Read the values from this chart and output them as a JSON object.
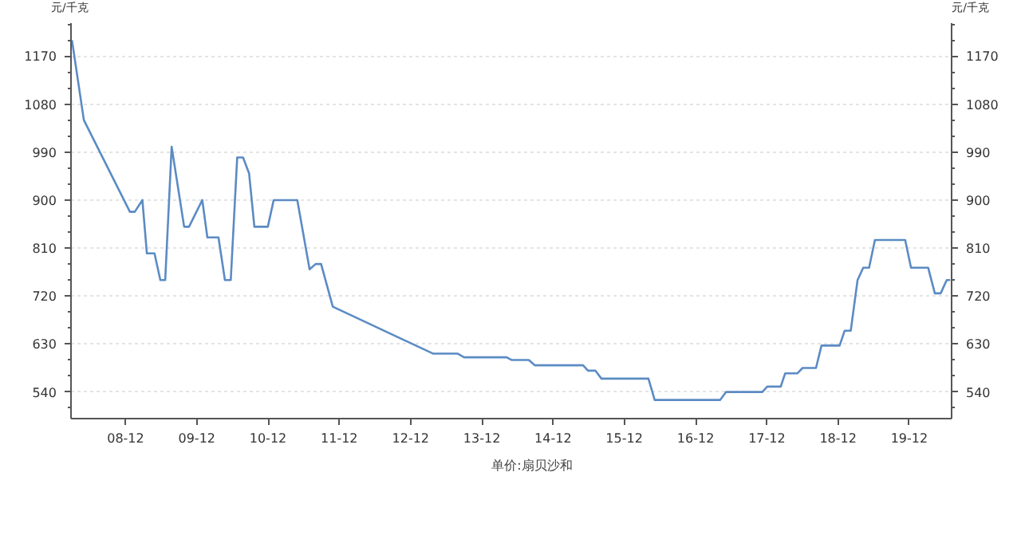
{
  "chart_data": {
    "type": "line",
    "ylabel": "元/千克",
    "y2label": "元/千克",
    "x": [
      "2008-03-01",
      "2008-05-01",
      "2008-12-23",
      "2009-01-17",
      "2009-02-25",
      "2009-03-20",
      "2009-04-28",
      "2009-05-28",
      "2009-06-22",
      "2009-07-25",
      "2009-09-27",
      "2009-10-22",
      "2009-12-29",
      "2010-01-24",
      "2010-03-22",
      "2010-04-24",
      "2010-05-24",
      "2010-06-26",
      "2010-07-26",
      "2010-08-26",
      "2010-09-22",
      "2010-11-30",
      "2010-12-30",
      "2011-04-30",
      "2011-07-02",
      "2011-08-02",
      "2011-08-30",
      "2011-10-29",
      "2013-03-25",
      "2013-07-29",
      "2013-09-01",
      "2014-04-07",
      "2014-05-02",
      "2014-07-30",
      "2014-08-30",
      "2015-05-04",
      "2015-05-29",
      "2015-07-06",
      "2015-08-06",
      "2016-04-03",
      "2016-05-05",
      "2017-04-06",
      "2017-05-06",
      "2017-11-08",
      "2017-12-03",
      "2018-02-10",
      "2018-03-05",
      "2018-05-07",
      "2018-06-02",
      "2018-08-10",
      "2018-09-07",
      "2018-12-09",
      "2019-01-04",
      "2019-02-04",
      "2019-03-11",
      "2019-04-09",
      "2019-05-09",
      "2019-06-08",
      "2019-11-10",
      "2019-12-10",
      "2020-03-07",
      "2020-04-10",
      "2020-05-10",
      "2020-06-10",
      "2020-06-28"
    ],
    "series": [
      {
        "name": "单价:扇贝沙和",
        "color": "#5b8bc4",
        "values": [
          1200,
          1050,
          878,
          878,
          900,
          800,
          800,
          750,
          750,
          1000,
          850,
          850,
          900,
          830,
          830,
          750,
          750,
          980,
          980,
          950,
          850,
          850,
          900,
          900,
          770,
          780,
          780,
          700,
          612,
          612,
          605,
          605,
          600,
          600,
          590,
          590,
          580,
          580,
          565,
          565,
          525,
          525,
          540,
          540,
          550,
          550,
          575,
          575,
          585,
          585,
          627,
          627,
          655,
          655,
          750,
          773,
          773,
          825,
          825,
          773,
          773,
          725,
          725,
          750,
          750
        ]
      }
    ],
    "xlim": [
      "2008-02-25",
      "2020-07-05"
    ],
    "xticks": [
      {
        "value": "2008-12-01",
        "label": "08-12"
      },
      {
        "value": "2009-12-01",
        "label": "09-12"
      },
      {
        "value": "2010-12-01",
        "label": "10-12"
      },
      {
        "value": "2011-12-01",
        "label": "11-12"
      },
      {
        "value": "2012-12-01",
        "label": "12-12"
      },
      {
        "value": "2013-12-01",
        "label": "13-12"
      },
      {
        "value": "2014-12-01",
        "label": "14-12"
      },
      {
        "value": "2015-12-01",
        "label": "15-12"
      },
      {
        "value": "2016-12-01",
        "label": "16-12"
      },
      {
        "value": "2017-12-01",
        "label": "17-12"
      },
      {
        "value": "2018-12-01",
        "label": "18-12"
      },
      {
        "value": "2019-12-01",
        "label": "19-12"
      }
    ],
    "ylim": [
      490,
      1232
    ],
    "yticks": [
      540,
      630,
      720,
      810,
      900,
      990,
      1080,
      1170
    ],
    "y2lim": [
      490,
      1232
    ],
    "y2ticks": [
      540,
      630,
      720,
      810,
      900,
      990,
      1080,
      1170
    ],
    "grid": "y",
    "legend": "bottom",
    "marker": "none",
    "line_style": "solid"
  }
}
